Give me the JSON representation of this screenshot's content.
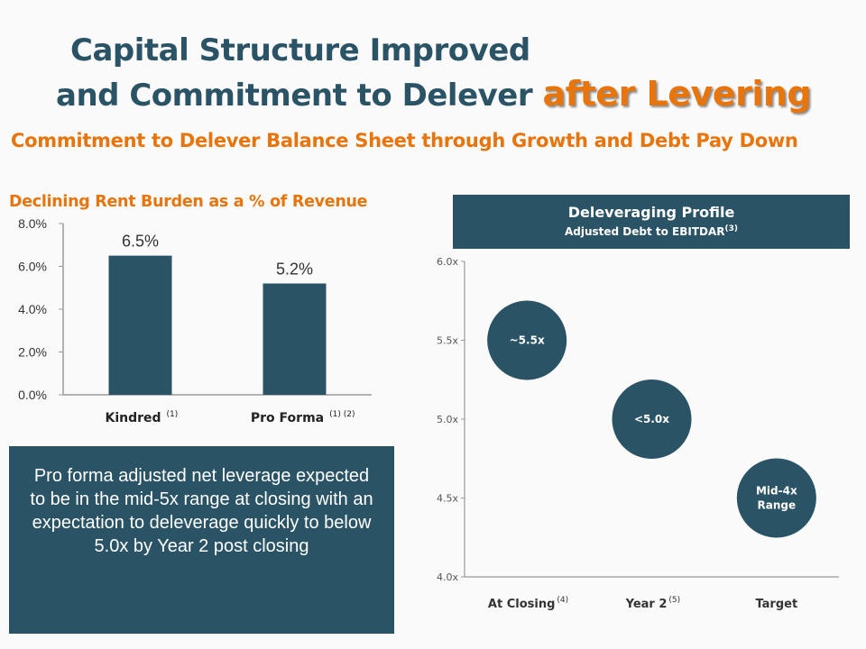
{
  "title": {
    "line1": "Capital Structure Improved",
    "line2": "and Commitment to Delever",
    "accent": "after Levering"
  },
  "subtitle": "Commitment to Delever Balance Sheet through Growth and Debt Pay Down",
  "note": "Pro forma adjusted net leverage expected to be in the mid-5x range at closing with an expectation to deleverage quickly to below 5.0x by Year 2 post closing",
  "deleveraging_header": {
    "title": "Deleveraging Profile",
    "subtitle": "Adjusted Debt to EBITDAR",
    "superscript": "(3)"
  },
  "colors": {
    "brand": "#2a5466",
    "accent": "#e8740c",
    "axis": "#999999"
  },
  "chart_data": [
    {
      "type": "bar",
      "title": "Declining Rent Burden as a % of Revenue",
      "categories": [
        "Kindred",
        "Pro Forma"
      ],
      "category_notes": [
        "(1)",
        "(1) (2)"
      ],
      "values": [
        6.5,
        5.2
      ],
      "data_labels": [
        "6.5%",
        "5.2%"
      ],
      "ylim": [
        0,
        8
      ],
      "yticks": [
        "0.0%",
        "2.0%",
        "4.0%",
        "6.0%",
        "8.0%"
      ],
      "grid": false
    },
    {
      "type": "scatter",
      "title": "Deleveraging Profile",
      "subtitle": "Adjusted Debt to EBITDAR",
      "categories": [
        "At Closing",
        "Year 2",
        "Target"
      ],
      "category_notes": [
        "(4)",
        "(5)",
        ""
      ],
      "values": [
        5.5,
        5.0,
        4.5
      ],
      "data_labels": [
        "~5.5x",
        "<5.0x",
        "Mid-4x Range"
      ],
      "ylim": [
        4.0,
        6.0
      ],
      "yticks": [
        "4.0x",
        "4.5x",
        "5.0x",
        "5.5x",
        "6.0x"
      ],
      "grid": false
    }
  ]
}
